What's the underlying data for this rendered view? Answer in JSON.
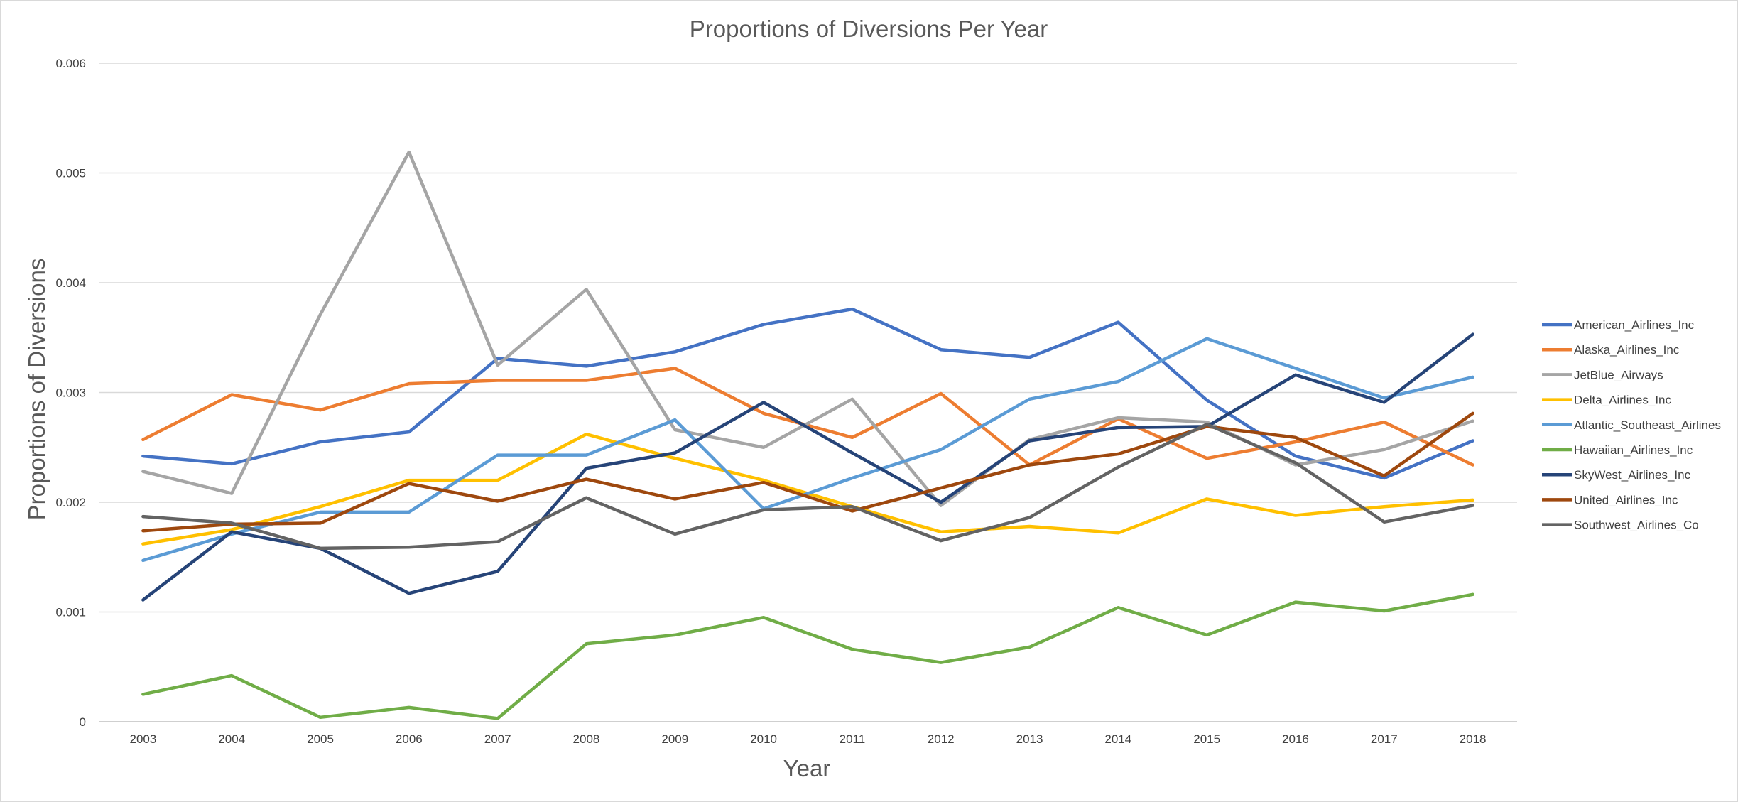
{
  "chart_data": {
    "type": "line",
    "title": "Proportions of Diversions Per Year",
    "xlabel": "Year",
    "ylabel": "Proportions of Diversions",
    "categories": [
      "2003",
      "2004",
      "2005",
      "2006",
      "2007",
      "2008",
      "2009",
      "2010",
      "2011",
      "2012",
      "2013",
      "2014",
      "2015",
      "2016",
      "2017",
      "2018"
    ],
    "ylim": [
      0,
      0.006
    ],
    "yticks": [
      "0",
      "0.001",
      "0.002",
      "0.003",
      "0.004",
      "0.005",
      "0.006"
    ],
    "grid": true,
    "legend_position": "right",
    "series": [
      {
        "name": "American_Airlines_Inc",
        "color": "#4472C4",
        "values": [
          0.00242,
          0.00235,
          0.00255,
          0.00264,
          0.00331,
          0.00324,
          0.00337,
          0.00362,
          0.00376,
          0.00339,
          0.00332,
          0.00364,
          0.00293,
          0.00242,
          0.00222,
          0.00256
        ]
      },
      {
        "name": "Alaska_Airlines_Inc",
        "color": "#ED7D31",
        "values": [
          0.00257,
          0.00298,
          0.00284,
          0.00308,
          0.00311,
          0.00311,
          0.00322,
          0.00281,
          0.00259,
          0.00299,
          0.00234,
          0.00276,
          0.0024,
          0.00255,
          0.00273,
          0.00234
        ]
      },
      {
        "name": "JetBlue_Airways",
        "color": "#A5A5A5",
        "values": [
          0.00228,
          0.00208,
          0.00371,
          0.00519,
          0.00325,
          0.00394,
          0.00266,
          0.0025,
          0.00294,
          0.00197,
          0.00257,
          0.00277,
          0.00273,
          0.00234,
          0.00248,
          0.00274
        ]
      },
      {
        "name": "Delta_Airlines_Inc",
        "color": "#FFC000",
        "values": [
          0.00162,
          0.00175,
          0.00196,
          0.0022,
          0.0022,
          0.00262,
          0.0024,
          0.0022,
          0.00196,
          0.00173,
          0.00178,
          0.00172,
          0.00203,
          0.00188,
          0.00196,
          0.00202
        ]
      },
      {
        "name": "Atlantic_Southeast_Airlines",
        "color": "#5B9BD5",
        "values": [
          0.00147,
          0.00171,
          0.00191,
          0.00191,
          0.00243,
          0.00243,
          0.00275,
          0.00194,
          0.00222,
          0.00248,
          0.00294,
          0.0031,
          0.00349,
          0.00322,
          0.00295,
          0.00314
        ]
      },
      {
        "name": "Hawaiian_Airlines_Inc",
        "color": "#70AD47",
        "values": [
          0.00025,
          0.00042,
          4e-05,
          0.00013,
          3e-05,
          0.00071,
          0.00079,
          0.00095,
          0.00066,
          0.00054,
          0.00068,
          0.00104,
          0.00079,
          0.00109,
          0.00101,
          0.00116
        ]
      },
      {
        "name": "SkyWest_Airlines_Inc",
        "color": "#264478",
        "values": [
          0.00111,
          0.00173,
          0.00158,
          0.00117,
          0.00137,
          0.00231,
          0.00245,
          0.00291,
          0.00245,
          0.002,
          0.00256,
          0.00268,
          0.00269,
          0.00316,
          0.00291,
          0.00353
        ]
      },
      {
        "name": "United_Airlines_Inc",
        "color": "#9E480E",
        "values": [
          0.00174,
          0.0018,
          0.00181,
          0.00217,
          0.00201,
          0.00221,
          0.00203,
          0.00218,
          0.00192,
          0.00213,
          0.00234,
          0.00244,
          0.00269,
          0.00259,
          0.00224,
          0.00281
        ]
      },
      {
        "name": "Southwest_Airlines_Co",
        "color": "#636363",
        "values": [
          0.00187,
          0.00181,
          0.00158,
          0.00159,
          0.00164,
          0.00204,
          0.00171,
          0.00193,
          0.00196,
          0.00165,
          0.00186,
          0.00232,
          0.00271,
          0.00236,
          0.00182,
          0.00197
        ]
      }
    ]
  }
}
